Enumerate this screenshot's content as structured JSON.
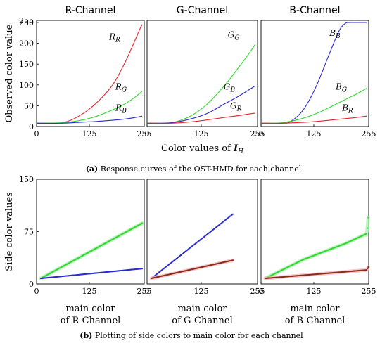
{
  "captions": {
    "a_prefix": "(a)",
    "a_text": " Response curves of the OST-HMD for each channel",
    "b_prefix": "(b)",
    "b_text": " Plotting of side colors to main color for each channel"
  },
  "colors": {
    "red": "#e8202a",
    "green": "#2fd82f",
    "blue": "#2a2ad0",
    "brown": "#8b2d16",
    "pink": "#f3b7c4",
    "lightgreen": "#a6efa8"
  },
  "chart_data": [
    {
      "panel": "a",
      "type": "line",
      "title": "R-Channel",
      "xlabel": "",
      "ylabel": "Observed color value",
      "xlim": [
        0,
        255
      ],
      "ylim": [
        0,
        255
      ],
      "xticks": [
        0,
        125,
        255
      ],
      "yticks": [
        0,
        50,
        100,
        150,
        200,
        250,
        255
      ],
      "series": [
        {
          "name": "R_R",
          "color": "red",
          "x": [
            0,
            60,
            100,
            140,
            180,
            210,
            230,
            245,
            250
          ],
          "y": [
            8,
            9,
            25,
            55,
            100,
            155,
            200,
            235,
            245
          ]
        },
        {
          "name": "R_G",
          "color": "green",
          "x": [
            0,
            60,
            100,
            140,
            180,
            210,
            235,
            250
          ],
          "y": [
            8,
            9,
            14,
            24,
            40,
            55,
            72,
            85
          ]
        },
        {
          "name": "R_B",
          "color": "blue",
          "x": [
            0,
            60,
            100,
            140,
            180,
            210,
            235,
            250
          ],
          "y": [
            8,
            8,
            10,
            12,
            15,
            18,
            22,
            25
          ]
        }
      ],
      "annotations": [
        {
          "base": "R",
          "sub": "R",
          "x": 185,
          "y": 215
        },
        {
          "base": "R",
          "sub": "G",
          "x": 200,
          "y": 95
        },
        {
          "base": "R",
          "sub": "B",
          "x": 200,
          "y": 45
        }
      ]
    },
    {
      "panel": "a",
      "type": "line",
      "title": "G-Channel",
      "xlabel": "Color values of ",
      "xlabel_symbol": "I",
      "xlabel_sub": "H",
      "xlim": [
        0,
        255
      ],
      "ylim": [
        0,
        255
      ],
      "xticks": [
        0,
        125,
        255
      ],
      "yticks": [],
      "series": [
        {
          "name": "G_G",
          "color": "green",
          "x": [
            0,
            55,
            100,
            140,
            180,
            210,
            235,
            250
          ],
          "y": [
            8,
            9,
            25,
            55,
            100,
            140,
            175,
            198
          ]
        },
        {
          "name": "G_B",
          "color": "blue",
          "x": [
            0,
            55,
            100,
            140,
            180,
            210,
            235,
            250
          ],
          "y": [
            8,
            9,
            18,
            32,
            55,
            72,
            88,
            98
          ]
        },
        {
          "name": "G_R",
          "color": "red",
          "x": [
            0,
            55,
            100,
            140,
            180,
            210,
            235,
            250
          ],
          "y": [
            8,
            8,
            11,
            16,
            22,
            26,
            30,
            32
          ]
        }
      ],
      "annotations": [
        {
          "base": "G",
          "sub": "G",
          "x": 200,
          "y": 220
        },
        {
          "base": "G",
          "sub": "B",
          "x": 190,
          "y": 95
        },
        {
          "base": "G",
          "sub": "R",
          "x": 205,
          "y": 50
        }
      ]
    },
    {
      "panel": "a",
      "type": "line",
      "title": "B-Channel",
      "xlabel": "",
      "xlim": [
        0,
        255
      ],
      "ylim": [
        0,
        255
      ],
      "xticks": [
        0,
        125,
        255
      ],
      "yticks": [],
      "series": [
        {
          "name": "B_B",
          "color": "blue",
          "x": [
            0,
            50,
            70,
            100,
            130,
            160,
            185,
            200,
            210,
            230,
            250
          ],
          "y": [
            8,
            8,
            12,
            40,
            95,
            170,
            230,
            248,
            250,
            250,
            250
          ]
        },
        {
          "name": "B_G",
          "color": "green",
          "x": [
            0,
            50,
            100,
            140,
            180,
            210,
            235,
            250
          ],
          "y": [
            8,
            9,
            20,
            35,
            55,
            70,
            83,
            92
          ]
        },
        {
          "name": "B_R",
          "color": "red",
          "x": [
            0,
            50,
            100,
            140,
            180,
            210,
            235,
            250
          ],
          "y": [
            8,
            8,
            10,
            13,
            17,
            20,
            23,
            25
          ]
        }
      ],
      "annotations": [
        {
          "base": "B",
          "sub": "B",
          "x": 175,
          "y": 225
        },
        {
          "base": "B",
          "sub": "G",
          "x": 190,
          "y": 95
        },
        {
          "base": "B",
          "sub": "R",
          "x": 205,
          "y": 45
        }
      ]
    },
    {
      "panel": "b",
      "type": "scatter",
      "xlabel": "main color\nof R-Channel",
      "ylabel": "Side color values",
      "xlim": [
        0,
        255
      ],
      "ylim": [
        0,
        150
      ],
      "xticks": [
        0,
        125,
        255
      ],
      "yticks": [
        0,
        75,
        150
      ],
      "series": [
        {
          "color": "green",
          "halo": "lightgreen",
          "x": [
            10,
            250
          ],
          "y": [
            8,
            87
          ]
        },
        {
          "color": "blue",
          "halo": null,
          "x": [
            10,
            250
          ],
          "y": [
            8,
            22
          ]
        }
      ]
    },
    {
      "panel": "b",
      "type": "scatter",
      "xlabel": "main color\nof G-Channel",
      "xlim": [
        0,
        255
      ],
      "ylim": [
        0,
        150
      ],
      "xticks": [
        0,
        125,
        255
      ],
      "yticks": [],
      "series": [
        {
          "color": "blue",
          "halo": null,
          "x": [
            10,
            198
          ],
          "y": [
            8,
            100
          ]
        },
        {
          "color": "brown",
          "halo": "pink",
          "x": [
            10,
            198
          ],
          "y": [
            8,
            34
          ]
        }
      ]
    },
    {
      "panel": "b",
      "type": "scatter",
      "xlabel": "main color\nof B-Channel",
      "xlim": [
        0,
        255
      ],
      "ylim": [
        0,
        150
      ],
      "xticks": [
        0,
        125,
        255
      ],
      "yticks": [],
      "series": [
        {
          "color": "green",
          "halo": "lightgreen",
          "x": [
            10,
            100,
            200,
            250,
            252,
            254
          ],
          "y": [
            8,
            35,
            58,
            72,
            80,
            95
          ]
        },
        {
          "color": "brown",
          "halo": "pink",
          "x": [
            10,
            250,
            254
          ],
          "y": [
            8,
            20,
            24
          ]
        }
      ]
    }
  ]
}
